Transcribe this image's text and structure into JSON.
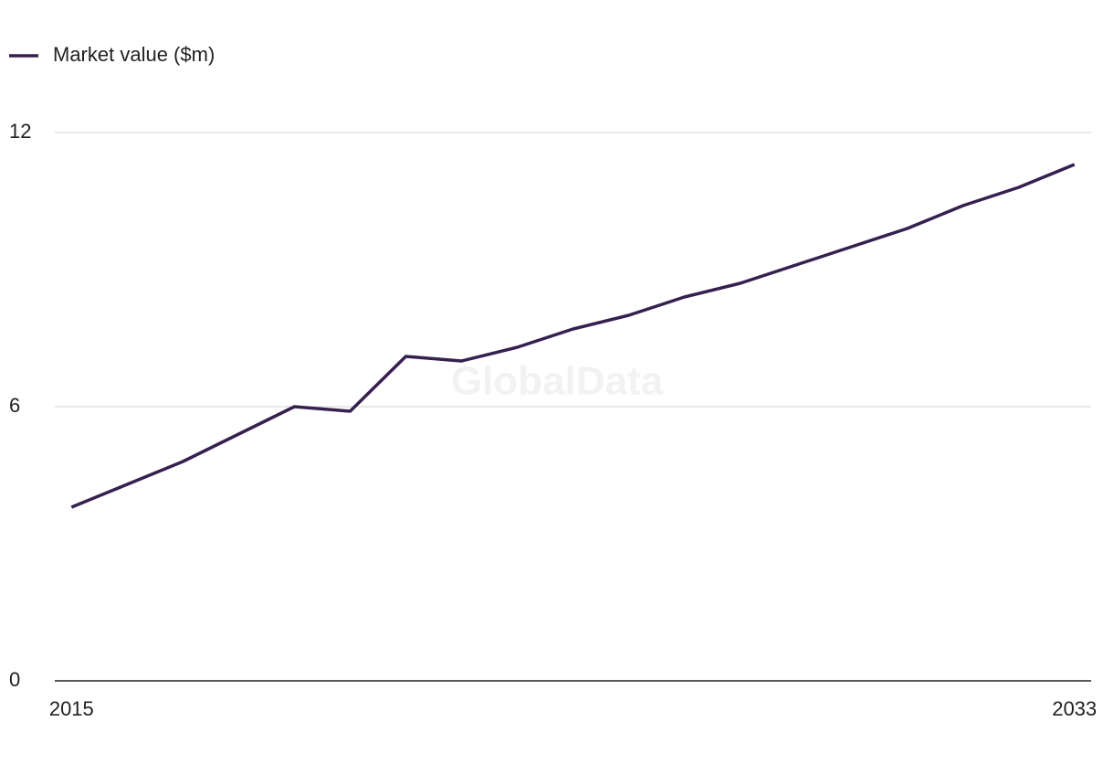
{
  "chart_data": {
    "type": "line",
    "watermark": "GlobalData",
    "x": [
      2015,
      2016,
      2017,
      2018,
      2019,
      2020,
      2021,
      2022,
      2023,
      2024,
      2025,
      2026,
      2027,
      2028,
      2029,
      2030,
      2031,
      2032,
      2033
    ],
    "series": [
      {
        "name": "Market value ($m)",
        "color": "#36204f",
        "values": [
          3.8,
          4.3,
          4.8,
          5.4,
          6.0,
          5.9,
          7.1,
          7.0,
          7.3,
          7.7,
          8.0,
          8.4,
          8.7,
          9.1,
          9.5,
          9.9,
          10.4,
          10.8,
          11.3
        ]
      }
    ],
    "xlim": [
      2014.7,
      2033.3
    ],
    "xticks": [
      2015,
      2033
    ],
    "ylim": [
      0,
      12
    ],
    "yticks": [
      0,
      6,
      12
    ],
    "grid": true,
    "legend": "top-left"
  }
}
